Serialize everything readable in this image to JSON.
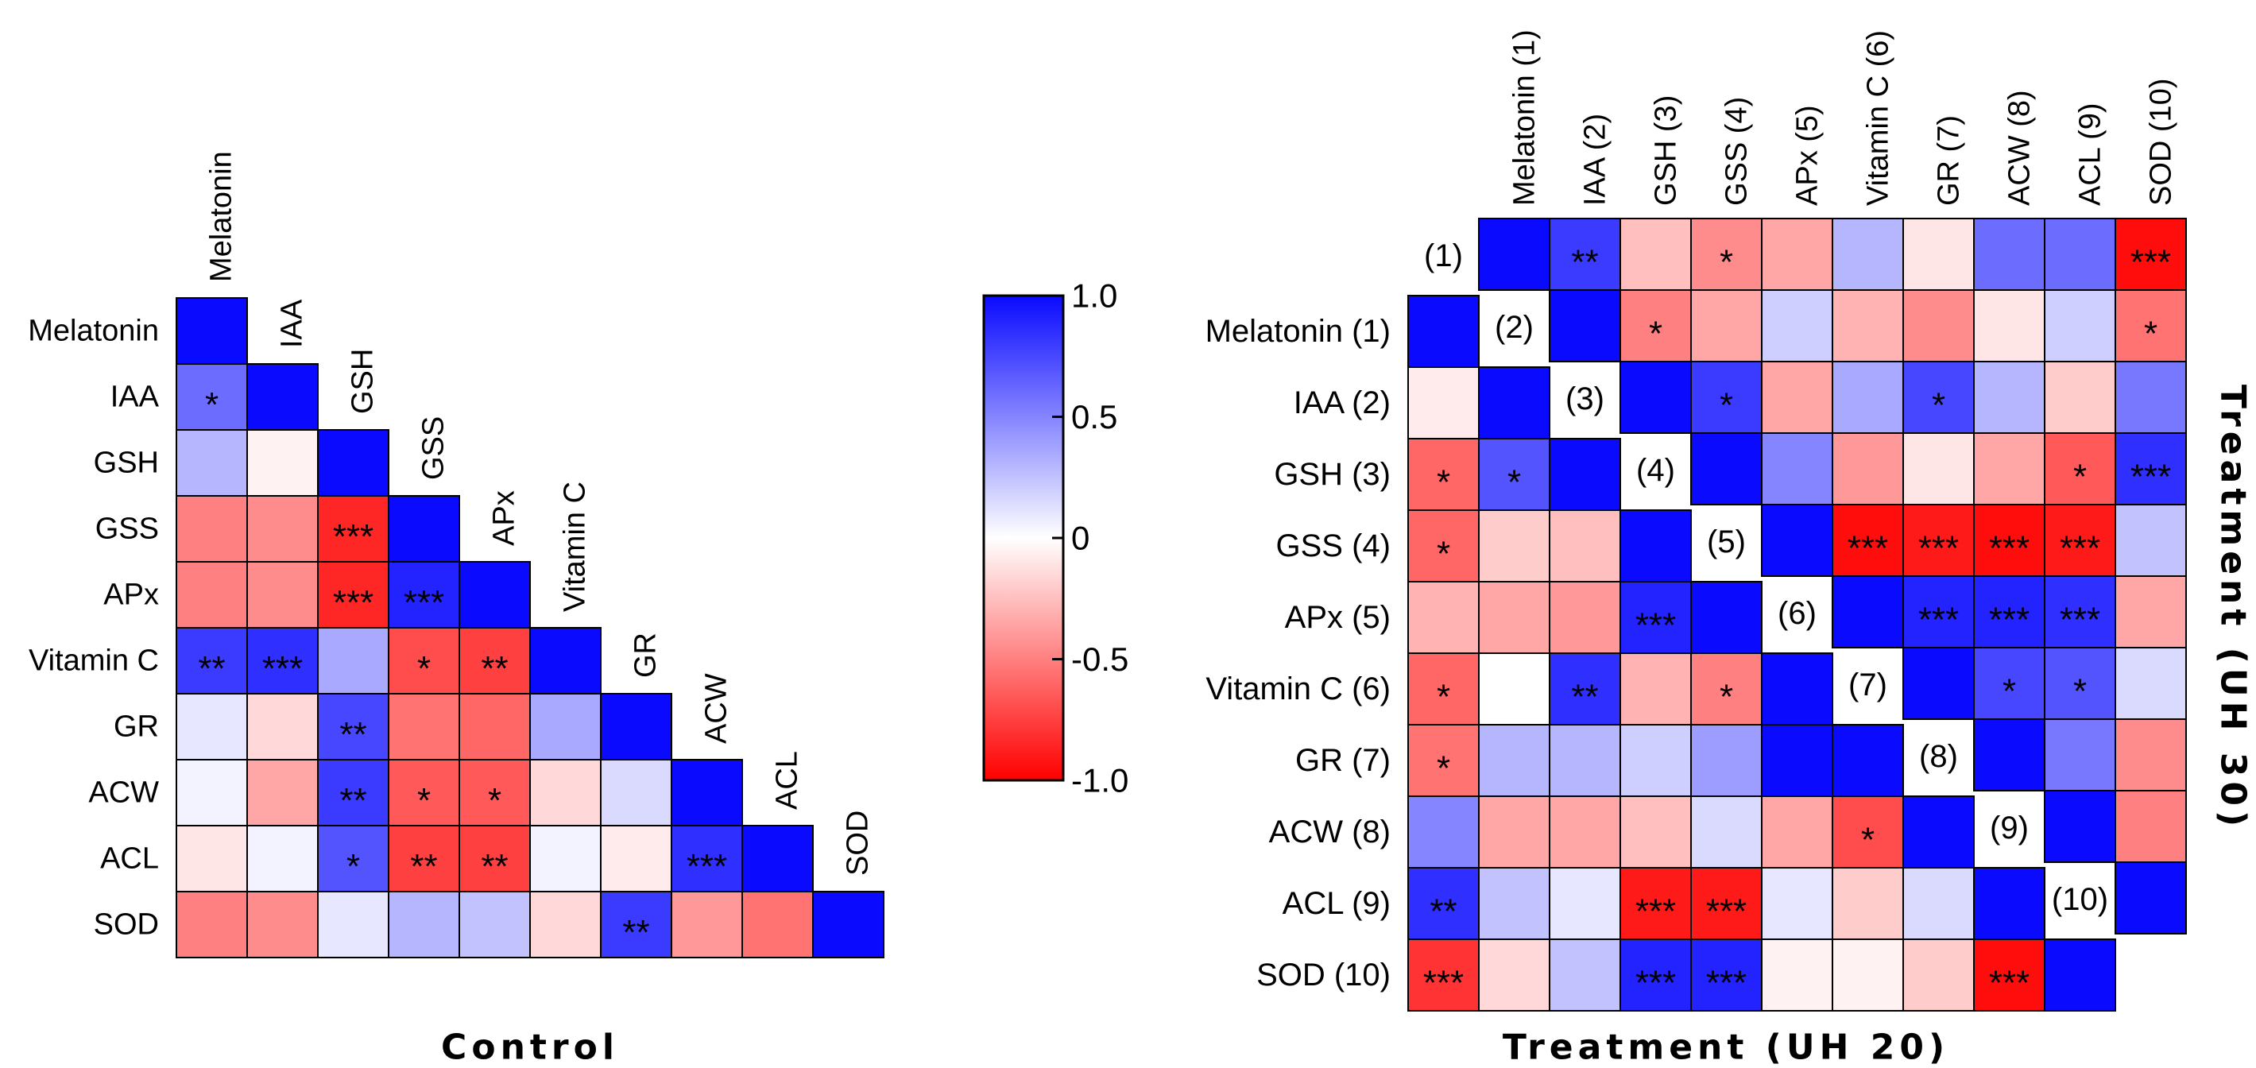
{
  "palette": {
    "pos": "#0a0aff",
    "neg": "#ff0000",
    "mid": "#ffffff"
  },
  "chart_data": [
    {
      "type": "heatmap",
      "title": "Control",
      "layout": "lower-triangle",
      "labels": [
        "Melatonin",
        "IAA",
        "GSH",
        "GSS",
        "APx",
        "Vitamin C",
        "GR",
        "ACW",
        "ACL",
        "SOD"
      ],
      "values": [
        [
          1.0
        ],
        [
          0.6,
          1.0
        ],
        [
          0.3,
          -0.05,
          1.0
        ],
        [
          -0.5,
          -0.45,
          -0.85,
          1.0
        ],
        [
          -0.5,
          -0.45,
          -0.85,
          0.9,
          1.0
        ],
        [
          0.8,
          0.85,
          0.35,
          -0.7,
          -0.75,
          1.0
        ],
        [
          0.1,
          -0.15,
          0.75,
          -0.55,
          -0.6,
          0.35,
          1.0
        ],
        [
          0.05,
          -0.35,
          0.8,
          -0.65,
          -0.65,
          -0.15,
          0.15,
          1.0
        ],
        [
          -0.1,
          0.05,
          0.7,
          -0.75,
          -0.75,
          0.05,
          -0.08,
          0.85,
          1.0
        ],
        [
          -0.5,
          -0.45,
          0.1,
          0.3,
          0.25,
          -0.15,
          0.8,
          -0.4,
          -0.55,
          1.0
        ]
      ],
      "stars": [
        [
          ""
        ],
        [
          "*",
          ""
        ],
        [
          "",
          "",
          ""
        ],
        [
          "",
          "",
          "***",
          ""
        ],
        [
          "",
          "",
          "***",
          "***",
          ""
        ],
        [
          "**",
          "***",
          "",
          "*",
          "**",
          ""
        ],
        [
          "",
          "",
          "**",
          "",
          "",
          "",
          ""
        ],
        [
          "",
          "",
          "**",
          "*",
          "*",
          "",
          "",
          ""
        ],
        [
          "",
          "",
          "*",
          "**",
          "**",
          "",
          "",
          "***",
          ""
        ],
        [
          "",
          "",
          "",
          "",
          "",
          "",
          "**",
          "",
          "",
          ""
        ]
      ]
    },
    {
      "type": "heatmap",
      "title": "Treatment (UH 20)",
      "side_title": "Treatment (UH 30)",
      "layout": "dual-triangle",
      "row_labels": [
        "Melatonin (1)",
        "IAA (2)",
        "GSH (3)",
        "GSS (4)",
        "APx (5)",
        "Vitamin C (6)",
        "GR (7)",
        "ACW (8)",
        "ACL (9)",
        "SOD (10)"
      ],
      "col_labels": [
        "Melatonin (1)",
        "IAA (2)",
        "GSH (3)",
        "GSS (4)",
        "APx (5)",
        "Vitamin C (6)",
        "GR (7)",
        "ACW (8)",
        "ACL (9)",
        "SOD (10)"
      ],
      "diagonal_labels": [
        "(1)",
        "(2)",
        "(3)",
        "(4)",
        "(5)",
        "(6)",
        "(7)",
        "(8)",
        "(9)",
        "(10)"
      ],
      "uh20_lower": [
        [
          1.0
        ],
        [
          -0.08,
          1.0
        ],
        [
          -0.6,
          0.7,
          1.0
        ],
        [
          -0.6,
          -0.2,
          -0.25,
          1.0
        ],
        [
          -0.3,
          -0.35,
          -0.4,
          0.9,
          1.0
        ],
        [
          -0.6,
          0.0,
          0.85,
          -0.3,
          -0.5,
          1.0
        ],
        [
          -0.55,
          0.3,
          0.3,
          0.2,
          0.4,
          1.0,
          1.0
        ],
        [
          0.5,
          -0.35,
          -0.35,
          -0.25,
          0.15,
          -0.35,
          -0.7,
          1.0
        ],
        [
          0.85,
          0.25,
          0.1,
          -0.9,
          -0.9,
          0.1,
          -0.2,
          0.15,
          1.0
        ],
        [
          -0.8,
          -0.15,
          0.25,
          0.9,
          0.9,
          -0.05,
          -0.05,
          -0.2,
          -0.95,
          1.0
        ]
      ],
      "uh20_stars": [
        [
          ""
        ],
        [
          "",
          ""
        ],
        [
          "*",
          "*",
          ""
        ],
        [
          "*",
          "",
          "",
          ""
        ],
        [
          "",
          "",
          "",
          "***",
          ""
        ],
        [
          "*",
          "",
          "**",
          "",
          "*",
          ""
        ],
        [
          "*",
          "",
          "",
          "",
          "",
          "",
          ""
        ],
        [
          "",
          "",
          "",
          "",
          "",
          "",
          "*",
          ""
        ],
        [
          "**",
          "",
          "",
          "***",
          "***",
          "",
          "",
          "",
          ""
        ],
        [
          "***",
          "",
          "",
          "***",
          "***",
          "",
          "",
          "",
          "***",
          ""
        ]
      ],
      "uh30_upper": [
        [
          1.0,
          0.8,
          -0.25,
          -0.45,
          -0.35,
          0.3,
          -0.1,
          0.6,
          0.6,
          -0.95
        ],
        [
          1.0,
          -0.5,
          -0.35,
          0.2,
          -0.3,
          -0.45,
          -0.1,
          0.2,
          -0.55
        ],
        [
          1.0,
          0.8,
          -0.35,
          0.35,
          0.75,
          0.3,
          -0.2,
          0.55
        ],
        [
          1.0,
          0.5,
          -0.4,
          -0.1,
          -0.35,
          -0.65,
          0.85
        ],
        [
          1.0,
          -0.95,
          -0.9,
          -0.95,
          -0.9,
          0.25
        ],
        [
          1.0,
          0.9,
          0.9,
          0.85,
          -0.35
        ],
        [
          1.0,
          0.75,
          0.7,
          0.15
        ],
        [
          1.0,
          0.55,
          -0.45
        ],
        [
          1.0,
          -0.5
        ],
        [
          1.0
        ]
      ],
      "uh30_stars": [
        [
          "",
          "**",
          "",
          "*",
          "",
          "",
          "",
          "",
          "",
          "***"
        ],
        [
          "",
          "*",
          "",
          "",
          "",
          "",
          "",
          "",
          "*"
        ],
        [
          "",
          "*",
          "",
          "",
          "*",
          "",
          "",
          ""
        ],
        [
          "",
          "",
          "",
          "",
          "",
          "*",
          "***"
        ],
        [
          "",
          "***",
          "***",
          "***",
          "***",
          ""
        ],
        [
          "",
          "***",
          "***",
          "***",
          ""
        ],
        [
          "",
          "*",
          "*",
          ""
        ],
        [
          "",
          "",
          ""
        ],
        [
          "",
          ""
        ],
        [
          ""
        ]
      ]
    },
    {
      "type": "colorbar",
      "ticks": [
        {
          "value": 1.0,
          "label": "1.0"
        },
        {
          "value": 0.5,
          "label": "0.5"
        },
        {
          "value": 0.0,
          "label": "0"
        },
        {
          "value": -0.5,
          "label": "-0.5"
        },
        {
          "value": -1.0,
          "label": "-1.0"
        }
      ]
    }
  ]
}
